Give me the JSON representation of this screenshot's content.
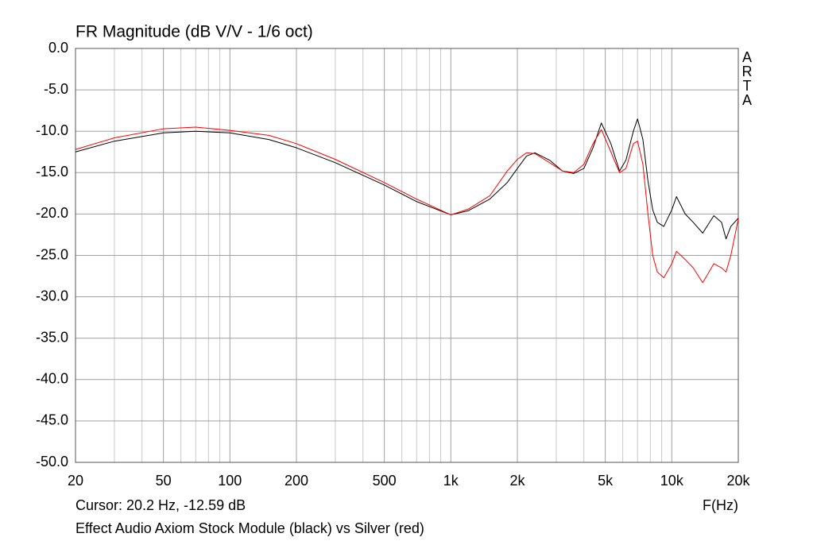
{
  "chart_data": {
    "type": "line",
    "title": "FR Magnitude (dB V/V - 1/6 oct)",
    "watermark": "ARTA",
    "cursor_text": "Cursor: 20.2 Hz, -12.59 dB",
    "x_label": "F(Hz)",
    "caption": "Effect Audio Axiom Stock Module (black) vs Silver (red)",
    "xscale": "log",
    "xlim": [
      20,
      20000
    ],
    "ylim": [
      -50,
      0
    ],
    "xticks": [
      20,
      50,
      100,
      200,
      500,
      {
        "value": 1000,
        "label": "1k"
      },
      {
        "value": 2000,
        "label": "2k"
      },
      {
        "value": 5000,
        "label": "5k"
      },
      {
        "value": 10000,
        "label": "10k"
      },
      {
        "value": 20000,
        "label": "20k"
      }
    ],
    "xgrid": [
      30,
      40,
      60,
      70,
      80,
      90,
      300,
      400,
      600,
      700,
      800,
      900,
      3000,
      4000,
      6000,
      7000,
      8000,
      9000
    ],
    "yticks": [
      {
        "value": 0,
        "label": "0.0"
      },
      {
        "value": -5,
        "label": "-5.0"
      },
      {
        "value": -10,
        "label": "-10.0"
      },
      {
        "value": -15,
        "label": "-15.0"
      },
      {
        "value": -20,
        "label": "-20.0"
      },
      {
        "value": -25,
        "label": "-25.0"
      },
      {
        "value": -30,
        "label": "-30.0"
      },
      {
        "value": -35,
        "label": "-35.0"
      },
      {
        "value": -40,
        "label": "-40.0"
      },
      {
        "value": -45,
        "label": "-45.0"
      },
      {
        "value": -50,
        "label": "-50.0"
      }
    ],
    "grid": true,
    "x": [
      20,
      30,
      50,
      70,
      100,
      150,
      200,
      300,
      500,
      700,
      1000,
      1200,
      1500,
      1800,
      2000,
      2200,
      2400,
      2800,
      3200,
      3600,
      4000,
      4400,
      4800,
      5300,
      5800,
      6200,
      6700,
      7000,
      7400,
      7800,
      8200,
      8600,
      9200,
      10000,
      10500,
      11500,
      12500,
      13800,
      15500,
      16800,
      17600,
      18500,
      20000
    ],
    "series": [
      {
        "color": "#000000",
        "values": [
          -12.5,
          -11.2,
          -10.2,
          -10.0,
          -10.2,
          -11.0,
          -12.0,
          -13.8,
          -16.5,
          -18.5,
          -20.1,
          -19.6,
          -18.2,
          -16.2,
          -14.5,
          -13.0,
          -12.6,
          -13.5,
          -14.8,
          -15.1,
          -14.5,
          -12.0,
          -9.0,
          -11.5,
          -14.8,
          -13.5,
          -10.0,
          -8.5,
          -11.0,
          -16.0,
          -19.5,
          -21.0,
          -21.5,
          -19.5,
          -17.9,
          -20.0,
          -21.0,
          -22.3,
          -20.2,
          -21.0,
          -23.0,
          -21.5,
          -20.5
        ]
      },
      {
        "color": "#ff0000",
        "values": [
          -12.2,
          -10.8,
          -9.7,
          -9.5,
          -9.9,
          -10.5,
          -11.5,
          -13.4,
          -16.2,
          -18.2,
          -20.1,
          -19.4,
          -17.8,
          -14.8,
          -13.4,
          -12.6,
          -12.7,
          -13.8,
          -14.8,
          -15.0,
          -14.0,
          -11.5,
          -9.8,
          -12.5,
          -15.0,
          -14.5,
          -11.5,
          -11.2,
          -14.0,
          -20.0,
          -25.0,
          -27.0,
          -27.7,
          -26.0,
          -24.5,
          -25.5,
          -26.5,
          -28.3,
          -26.0,
          -26.5,
          -27.0,
          -25.0,
          -20.6
        ]
      }
    ]
  }
}
